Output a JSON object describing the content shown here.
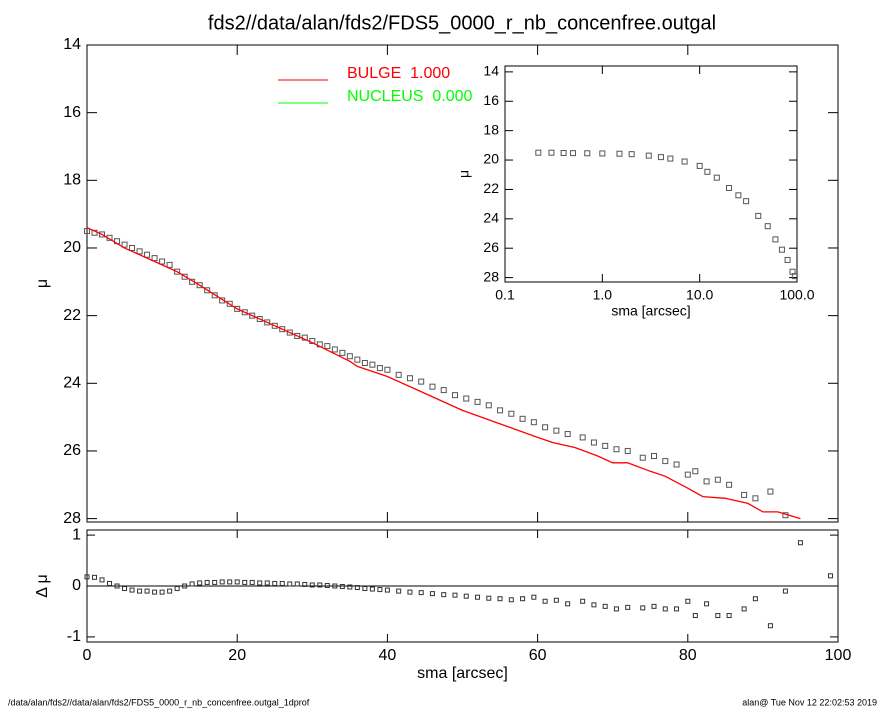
{
  "chart_data": [
    {
      "type": "scatter",
      "title": "fds2//data/alan/fds2/FDS5_0000_r_nb_concenfree.outgal",
      "ylabel": "μ",
      "xlim": [
        0,
        100
      ],
      "xticks": [
        0,
        20,
        40,
        60,
        80,
        100
      ],
      "xtick_labels": false,
      "ylim": [
        28.1,
        14
      ],
      "yticks": [
        14,
        16,
        18,
        20,
        22,
        24,
        26,
        28
      ],
      "series": [
        {
          "color": "#555555",
          "mode": "markers",
          "x": [
            0,
            1,
            2,
            3,
            4,
            5,
            6,
            7,
            8,
            9,
            10,
            11,
            12,
            13,
            14,
            15,
            16,
            17,
            18,
            19,
            20,
            21,
            22,
            23,
            24,
            25,
            26,
            27,
            28,
            29,
            30,
            31,
            32,
            33,
            34,
            35,
            36,
            37,
            38,
            39,
            40,
            41.5,
            43,
            44.5,
            46,
            47.5,
            49,
            50.5,
            52,
            53.5,
            55,
            56.5,
            58,
            59.5,
            61,
            62.5,
            64,
            66,
            67.5,
            69,
            70.5,
            72,
            74,
            75.5,
            77,
            78.5,
            80,
            81,
            82.5,
            84,
            85.5,
            87.5,
            89,
            91,
            93
          ],
          "values": [
            19.5,
            19.55,
            19.6,
            19.7,
            19.8,
            19.9,
            20.0,
            20.1,
            20.2,
            20.3,
            20.4,
            20.5,
            20.7,
            20.85,
            21.0,
            21.1,
            21.25,
            21.4,
            21.55,
            21.65,
            21.8,
            21.9,
            22.0,
            22.1,
            22.2,
            22.3,
            22.4,
            22.5,
            22.6,
            22.65,
            22.75,
            22.85,
            22.9,
            23.0,
            23.1,
            23.2,
            23.3,
            23.4,
            23.45,
            23.55,
            23.6,
            23.75,
            23.85,
            23.95,
            24.1,
            24.2,
            24.35,
            24.45,
            24.55,
            24.65,
            24.8,
            24.9,
            25.05,
            25.15,
            25.3,
            25.4,
            25.5,
            25.6,
            25.75,
            25.85,
            25.95,
            26.0,
            26.2,
            26.15,
            26.3,
            26.4,
            26.7,
            26.6,
            26.9,
            26.85,
            27.0,
            27.3,
            27.4,
            27.2,
            27.9
          ]
        },
        {
          "name": "BULGE  1.000",
          "color": "#ff0000",
          "mode": "line",
          "x": [
            0,
            2,
            5,
            10,
            12,
            15,
            20,
            25,
            30,
            35,
            36,
            40,
            45,
            50,
            55,
            60,
            62,
            65,
            68,
            70,
            72,
            75,
            77,
            80,
            82,
            85,
            86,
            88,
            90,
            92,
            95
          ],
          "values": [
            19.4,
            19.6,
            20.0,
            20.5,
            20.7,
            21.1,
            21.8,
            22.3,
            22.8,
            23.35,
            23.5,
            23.8,
            24.3,
            24.8,
            25.2,
            25.6,
            25.75,
            25.9,
            26.15,
            26.35,
            26.35,
            26.6,
            26.75,
            27.1,
            27.35,
            27.4,
            27.45,
            27.55,
            27.8,
            27.8,
            28.0
          ]
        },
        {
          "name": "NUCLEUS  0.000",
          "color": "#00ff00",
          "mode": "line",
          "x": [],
          "values": []
        }
      ]
    },
    {
      "type": "scatter",
      "ylabel": "Δ μ",
      "xlabel": "sma [arcsec]",
      "xlim": [
        0,
        100
      ],
      "xticks": [
        0,
        20,
        40,
        60,
        80,
        100
      ],
      "ylim": [
        -1.1,
        1.1
      ],
      "yticks": [
        -1,
        0,
        1
      ],
      "reference_line": 0,
      "series": [
        {
          "color": "#333333",
          "mode": "markers",
          "x": [
            0,
            1,
            2,
            3,
            4,
            5,
            6,
            7,
            8,
            9,
            10,
            11,
            12,
            13,
            14,
            15,
            16,
            17,
            18,
            19,
            20,
            21,
            22,
            23,
            24,
            25,
            26,
            27,
            28,
            29,
            30,
            31,
            32,
            33,
            34,
            35,
            36,
            37,
            38,
            39,
            40,
            41.5,
            43,
            44.5,
            46,
            47.5,
            49,
            50.5,
            52,
            53.5,
            55,
            56.5,
            58,
            59.5,
            61,
            62.5,
            64,
            66,
            67.5,
            69,
            70.5,
            72,
            74,
            75.5,
            77,
            78.5,
            80,
            81,
            82.5,
            84,
            85.5,
            87.5,
            89,
            91,
            93,
            95,
            99
          ],
          "values": [
            0.18,
            0.17,
            0.12,
            0.05,
            0.0,
            -0.05,
            -0.08,
            -0.1,
            -0.1,
            -0.12,
            -0.12,
            -0.1,
            -0.05,
            0.0,
            0.04,
            0.06,
            0.07,
            0.07,
            0.08,
            0.08,
            0.08,
            0.07,
            0.07,
            0.06,
            0.06,
            0.05,
            0.05,
            0.04,
            0.04,
            0.03,
            0.02,
            0.02,
            0.01,
            0.0,
            -0.01,
            -0.02,
            -0.03,
            -0.05,
            -0.06,
            -0.07,
            -0.08,
            -0.1,
            -0.12,
            -0.13,
            -0.15,
            -0.17,
            -0.18,
            -0.2,
            -0.22,
            -0.24,
            -0.25,
            -0.27,
            -0.25,
            -0.22,
            -0.3,
            -0.28,
            -0.35,
            -0.3,
            -0.37,
            -0.4,
            -0.45,
            -0.42,
            -0.43,
            -0.4,
            -0.45,
            -0.45,
            -0.3,
            -0.58,
            -0.35,
            -0.58,
            -0.58,
            -0.45,
            -0.25,
            -0.78,
            -0.1,
            0.85,
            0.2
          ]
        }
      ]
    },
    {
      "type": "scatter",
      "ylabel": "μ",
      "xlabel": "sma [arcsec]",
      "xlog": true,
      "xlim": [
        0.1,
        100
      ],
      "xticks": [
        0.1,
        {
          "value": 1,
          "label": "1.0"
        },
        {
          "value": 10,
          "label": "10.0"
        },
        {
          "value": 100,
          "label": "100.0"
        }
      ],
      "ylim": [
        28.3,
        13.6
      ],
      "yticks": [
        14,
        16,
        18,
        20,
        22,
        24,
        26,
        28
      ],
      "series": [
        {
          "color": "#555555",
          "mode": "markers",
          "x": [
            0.22,
            0.3,
            0.4,
            0.5,
            0.7,
            1,
            1.5,
            2,
            3,
            4,
            5,
            7,
            10,
            12,
            15,
            20,
            25,
            30,
            40,
            50,
            60,
            70,
            80,
            90,
            95
          ],
          "values": [
            19.5,
            19.5,
            19.52,
            19.53,
            19.54,
            19.55,
            19.57,
            19.6,
            19.7,
            19.8,
            19.9,
            20.1,
            20.4,
            20.8,
            21.2,
            21.9,
            22.4,
            22.8,
            23.8,
            24.5,
            25.4,
            26.1,
            26.8,
            27.6,
            27.9
          ]
        }
      ]
    }
  ],
  "footer": {
    "left": "/data/alan/fds2//data/alan/fds2/FDS5_0000_r_nb_concenfree.outgal_1dprof",
    "right": "alan@  Tue Nov 12 22:02:53 2019"
  }
}
